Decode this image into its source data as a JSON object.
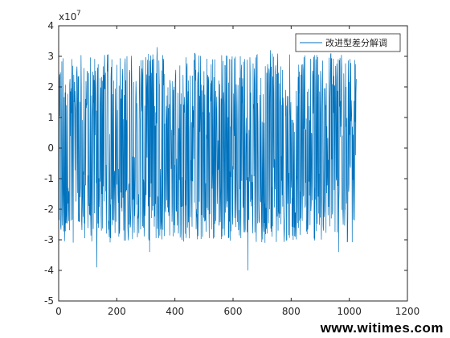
{
  "chart_data": {
    "type": "line",
    "title": "",
    "xlabel": "",
    "ylabel": "",
    "xlim": [
      0,
      1200
    ],
    "ylim": [
      -5,
      4
    ],
    "y_exponent_label": "x10",
    "y_exponent_power": "7",
    "xticks": [
      "0",
      "200",
      "400",
      "600",
      "800",
      "1000",
      "1200"
    ],
    "yticks": [
      "4",
      "3",
      "2",
      "1",
      "0",
      "-1",
      "-2",
      "-3",
      "-4",
      "-5"
    ],
    "grid": false,
    "legend_position": "top-right",
    "series": [
      {
        "name": "改进型差分解调",
        "color": "#0072bd",
        "n_points": 1024,
        "x_start": 1,
        "x_end": 1024,
        "y_max": 3.3,
        "y_min": -4.1,
        "description_values": [
          0.1,
          1.4,
          1.5,
          -2.4,
          0.2,
          -3.9,
          2.5,
          2.9,
          -2.8,
          3.0,
          -0.3,
          2.6,
          -3.4,
          3.3,
          0.8,
          -1.9,
          2.7,
          -2.6,
          3.1,
          -2.9,
          1.6,
          -1.2,
          2.7,
          -2.5,
          3.0,
          -4.0,
          2.2,
          -0.8,
          3.2,
          -2.7,
          1.9,
          -3.0,
          2.4,
          -1.6,
          2.9,
          -2.7,
          3.1,
          -3.4,
          2.0,
          -1.1
        ]
      }
    ]
  },
  "watermark": "www.witimes.com"
}
